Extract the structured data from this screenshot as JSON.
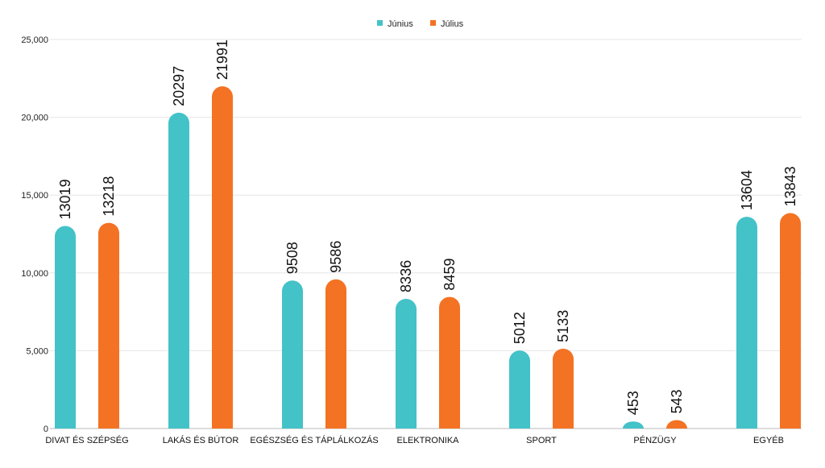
{
  "chart_data": {
    "type": "bar",
    "title": "",
    "xlabel": "",
    "ylabel": "",
    "ylim": [
      0,
      25000
    ],
    "yticks": [
      0,
      5000,
      10000,
      15000,
      20000,
      25000
    ],
    "ytick_labels": [
      "0",
      "5,000",
      "10,000",
      "15,000",
      "20,000",
      "25,000"
    ],
    "grid": true,
    "legend_position": "top-center",
    "categories": [
      "DIVAT ÉS SZÉPSÉG",
      "LAKÁS ÉS BÚTOR",
      "EGÉSZSÉG ÉS TÁPLÁLKOZÁS",
      "ELEKTRONIKA",
      "SPORT",
      "PÉNZÜGY",
      "EGYÉB"
    ],
    "series": [
      {
        "name": "Június",
        "color": "#43c2c8",
        "values": [
          13019,
          20297,
          9508,
          8336,
          5012,
          453,
          13604
        ]
      },
      {
        "name": "Július",
        "color": "#f47223",
        "values": [
          13218,
          21991,
          9586,
          8459,
          5133,
          543,
          13843
        ]
      }
    ]
  }
}
